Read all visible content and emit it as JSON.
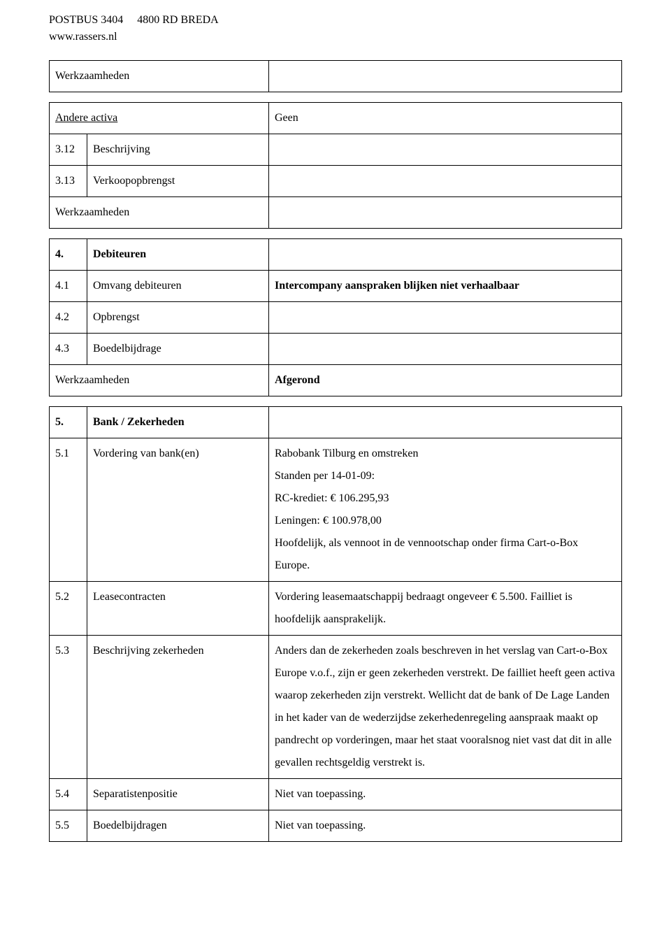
{
  "header": {
    "postbus": "POSTBUS 3404",
    "postcode": "4800 RD  BREDA",
    "website": "www.rassers.nl"
  },
  "table1": {
    "r1_label": "Werkzaamheden"
  },
  "table2": {
    "r1_label": "Andere activa",
    "r1_val": "Geen",
    "r2_num": "3.12",
    "r2_label": "Beschrijving",
    "r3_num": "3.13",
    "r3_label": "Verkoopopbrengst",
    "r4_label": "Werkzaamheden"
  },
  "table3": {
    "r1_num": "4.",
    "r1_label": "Debiteuren",
    "r2_num": "4.1",
    "r2_label": "Omvang debiteuren",
    "r2_val": "Intercompany aanspraken blijken niet verhaalbaar",
    "r3_num": "4.2",
    "r3_label": "Opbrengst",
    "r4_num": "4.3",
    "r4_label": "Boedelbijdrage",
    "r5_label": "Werkzaamheden",
    "r5_val": "Afgerond"
  },
  "table4": {
    "r1_num": "5.",
    "r1_label": "Bank / Zekerheden",
    "r2_num": "5.1",
    "r2_label": "Vordering van bank(en)",
    "r2_val_l1": "Rabobank Tilburg en omstreken",
    "r2_val_l2": "Standen per 14-01-09:",
    "r2_val_l3": "RC-krediet: € 106.295,93",
    "r2_val_l4": "Leningen: € 100.978,00",
    "r2_val_l5": "Hoofdelijk, als vennoot in de vennootschap onder firma Cart-o-Box Europe.",
    "r3_num": "5.2",
    "r3_label": "Leasecontracten",
    "r3_val": "Vordering leasemaatschappij bedraagt ongeveer € 5.500. Failliet is hoofdelijk aansprakelijk.",
    "r4_num": "5.3",
    "r4_label": "Beschrijving zekerheden",
    "r4_val": "Anders dan de zekerheden zoals beschreven in het verslag van Cart-o-Box Europe v.o.f., zijn er geen zekerheden verstrekt. De  failliet heeft geen activa waarop zekerheden zijn verstrekt. Wellicht dat de bank of De Lage Landen in het kader van de wederzijdse zekerhedenregeling aanspraak maakt op pandrecht op vorderingen, maar het staat vooralsnog niet  vast dat dit in alle gevallen rechtsgeldig verstrekt is.",
    "r5_num": "5.4",
    "r5_label": "Separatistenpositie",
    "r5_val": "Niet van toepassing.",
    "r6_num": "5.5",
    "r6_label": "Boedelbijdragen",
    "r6_val": "Niet van toepassing."
  }
}
